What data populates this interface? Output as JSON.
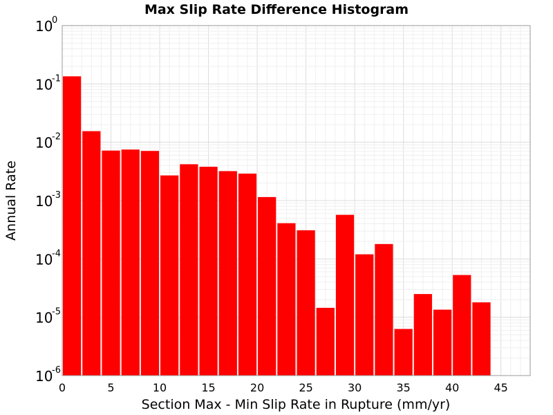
{
  "chart_data": {
    "type": "bar",
    "title": "Max Slip Rate Difference Histogram",
    "xlabel": "Section Max - Min Slip Rate in Rupture (mm/yr)",
    "ylabel": "Annual Rate",
    "x_scale": "linear",
    "y_scale": "log",
    "xlim": [
      0,
      48
    ],
    "ylim": [
      1e-06,
      1
    ],
    "x_ticks": [
      "0",
      "5",
      "10",
      "15",
      "20",
      "25",
      "30",
      "35",
      "40",
      "45"
    ],
    "y_ticks": [
      {
        "base": "10",
        "exp": "0"
      },
      {
        "base": "10",
        "exp": "-1"
      },
      {
        "base": "10",
        "exp": "-2"
      },
      {
        "base": "10",
        "exp": "-3"
      },
      {
        "base": "10",
        "exp": "-4"
      },
      {
        "base": "10",
        "exp": "-5"
      },
      {
        "base": "10",
        "exp": "-6"
      }
    ],
    "grid": true,
    "bar_color": "#ff0000",
    "bin_width": 2,
    "series": [
      {
        "bins": [
          {
            "x": 1,
            "value": 0.135
          },
          {
            "x": 3,
            "value": 0.0155
          },
          {
            "x": 5,
            "value": 0.0072
          },
          {
            "x": 7,
            "value": 0.0075
          },
          {
            "x": 9,
            "value": 0.0071
          },
          {
            "x": 11,
            "value": 0.0027
          },
          {
            "x": 13,
            "value": 0.0042
          },
          {
            "x": 15,
            "value": 0.0038
          },
          {
            "x": 17,
            "value": 0.0032
          },
          {
            "x": 19,
            "value": 0.0029
          },
          {
            "x": 21,
            "value": 0.00115
          },
          {
            "x": 23,
            "value": 0.00041
          },
          {
            "x": 25,
            "value": 0.00031
          },
          {
            "x": 27,
            "value": 1.45e-05
          },
          {
            "x": 29,
            "value": 0.00057
          },
          {
            "x": 31,
            "value": 0.00012
          },
          {
            "x": 33,
            "value": 0.00018
          },
          {
            "x": 35,
            "value": 6.3e-06
          },
          {
            "x": 37,
            "value": 2.5e-05
          },
          {
            "x": 39,
            "value": 1.35e-05
          },
          {
            "x": 41,
            "value": 5.3e-05
          },
          {
            "x": 43,
            "value": 1.8e-05
          }
        ]
      }
    ]
  }
}
